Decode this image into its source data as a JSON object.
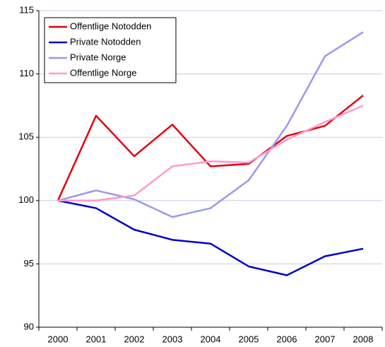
{
  "chart_data": {
    "type": "line",
    "categories": [
      "2000",
      "2001",
      "2002",
      "2003",
      "2004",
      "2005",
      "2006",
      "2007",
      "2008"
    ],
    "series": [
      {
        "name": "Offentlige Notodden",
        "color": "#e3000f",
        "values": [
          100,
          106.7,
          103.5,
          106.0,
          102.7,
          102.9,
          105.1,
          105.9,
          108.3
        ]
      },
      {
        "name": "Private Notodden",
        "color": "#0000cc",
        "values": [
          100,
          99.4,
          97.7,
          96.9,
          96.6,
          94.8,
          94.1,
          95.6,
          96.2
        ]
      },
      {
        "name": "Private Norge",
        "color": "#9999ee",
        "values": [
          100,
          100.8,
          100.1,
          98.7,
          99.4,
          101.6,
          105.9,
          111.4,
          113.3
        ]
      },
      {
        "name": "Offentlige Norge",
        "color": "#ff99cc",
        "values": [
          100,
          100,
          100.4,
          102.7,
          103.1,
          103.0,
          104.8,
          106.2,
          107.5
        ]
      }
    ],
    "ylim": [
      90,
      115
    ],
    "yticks": [
      90,
      95,
      100,
      105,
      110,
      115
    ],
    "grid": true,
    "legend": "top-left"
  }
}
